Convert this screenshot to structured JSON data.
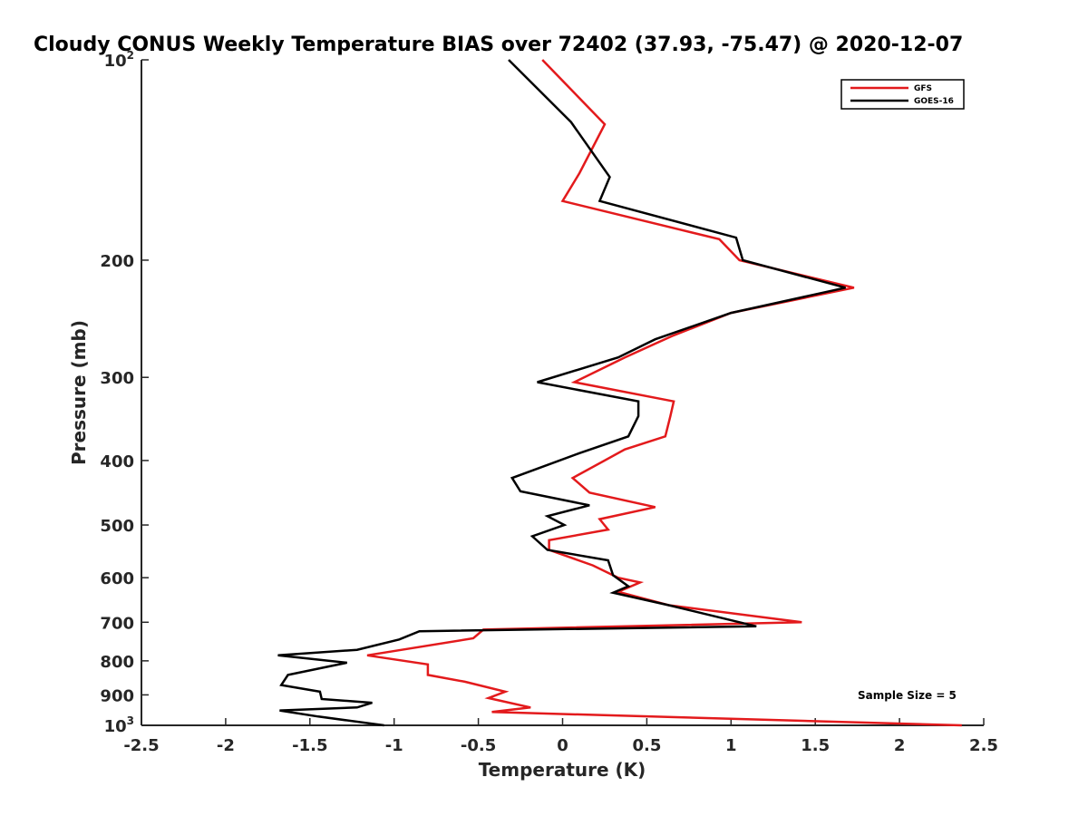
{
  "chart_data": {
    "type": "line",
    "title": "Cloudy CONUS Weekly Temperature BIAS over 72402 (37.93, -75.47) @ 2020-12-07",
    "xlabel": "Temperature (K)",
    "ylabel": "Pressure (mb)",
    "xlim": [
      -2.5,
      2.5
    ],
    "ylim": [
      100,
      1000
    ],
    "y_scale": "log",
    "y_reversed": true,
    "grid": false,
    "legend_position": "top-right",
    "x_ticks": [
      "-2.5",
      "-2",
      "-1.5",
      "-1",
      "-0.5",
      "0",
      "0.5",
      "1",
      "1.5",
      "2",
      "2.5"
    ],
    "y_ticks": [
      {
        "value": 100,
        "base": "10",
        "exp": "2"
      },
      {
        "value": 200,
        "label": "200"
      },
      {
        "value": 300,
        "label": "300"
      },
      {
        "value": 400,
        "label": "400"
      },
      {
        "value": 500,
        "label": "500"
      },
      {
        "value": 600,
        "label": "600"
      },
      {
        "value": 700,
        "label": "700"
      },
      {
        "value": 800,
        "label": "800"
      },
      {
        "value": 900,
        "label": "900"
      },
      {
        "value": 1000,
        "base": "10",
        "exp": "3"
      }
    ],
    "annotation": "Sample Size = 5",
    "series": [
      {
        "name": "GFS",
        "color": "#e31a1c",
        "points": [
          [
            -0.12,
            100
          ],
          [
            0.25,
            125
          ],
          [
            0.1,
            148
          ],
          [
            0.0,
            163
          ],
          [
            0.93,
            186
          ],
          [
            1.05,
            200
          ],
          [
            1.73,
            220
          ],
          [
            1.0,
            240
          ],
          [
            0.65,
            260
          ],
          [
            0.37,
            280
          ],
          [
            0.07,
            305
          ],
          [
            0.66,
            326
          ],
          [
            0.64,
            343
          ],
          [
            0.61,
            368
          ],
          [
            0.37,
            385
          ],
          [
            0.06,
            425
          ],
          [
            0.16,
            447
          ],
          [
            0.55,
            470
          ],
          [
            0.22,
            490
          ],
          [
            0.27,
            508
          ],
          [
            -0.08,
            527
          ],
          [
            -0.08,
            545
          ],
          [
            0.18,
            575
          ],
          [
            0.33,
            600
          ],
          [
            0.46,
            610
          ],
          [
            0.33,
            630
          ],
          [
            0.63,
            660
          ],
          [
            1.42,
            700
          ],
          [
            -0.47,
            718
          ],
          [
            -0.53,
            740
          ],
          [
            -1.16,
            785
          ],
          [
            -0.8,
            810
          ],
          [
            -0.8,
            840
          ],
          [
            -0.58,
            860
          ],
          [
            -0.34,
            890
          ],
          [
            -0.44,
            910
          ],
          [
            -0.19,
            940
          ],
          [
            -0.42,
            955
          ],
          [
            2.37,
            1000
          ]
        ]
      },
      {
        "name": "GOES-16",
        "color": "#000000",
        "points": [
          [
            -0.32,
            100
          ],
          [
            0.05,
            124
          ],
          [
            0.28,
            150
          ],
          [
            0.22,
            163
          ],
          [
            1.03,
            185
          ],
          [
            1.07,
            200
          ],
          [
            1.68,
            220
          ],
          [
            1.0,
            240
          ],
          [
            0.55,
            263
          ],
          [
            0.33,
            280
          ],
          [
            -0.15,
            305
          ],
          [
            0.45,
            326
          ],
          [
            0.45,
            343
          ],
          [
            0.39,
            368
          ],
          [
            0.1,
            390
          ],
          [
            -0.3,
            425
          ],
          [
            -0.25,
            445
          ],
          [
            0.16,
            467
          ],
          [
            -0.09,
            485
          ],
          [
            0.01,
            500
          ],
          [
            -0.18,
            520
          ],
          [
            -0.09,
            545
          ],
          [
            0.27,
            565
          ],
          [
            0.3,
            595
          ],
          [
            0.39,
            618
          ],
          [
            0.3,
            632
          ],
          [
            0.63,
            660
          ],
          [
            1.15,
            710
          ],
          [
            -0.85,
            722
          ],
          [
            -0.97,
            743
          ],
          [
            -1.22,
            770
          ],
          [
            -1.69,
            785
          ],
          [
            -1.28,
            805
          ],
          [
            -1.63,
            840
          ],
          [
            -1.67,
            870
          ],
          [
            -1.44,
            890
          ],
          [
            -1.43,
            913
          ],
          [
            -1.13,
            925
          ],
          [
            -1.22,
            940
          ],
          [
            -1.68,
            950
          ],
          [
            -1.45,
            970
          ],
          [
            -1.06,
            1000
          ]
        ]
      }
    ]
  }
}
